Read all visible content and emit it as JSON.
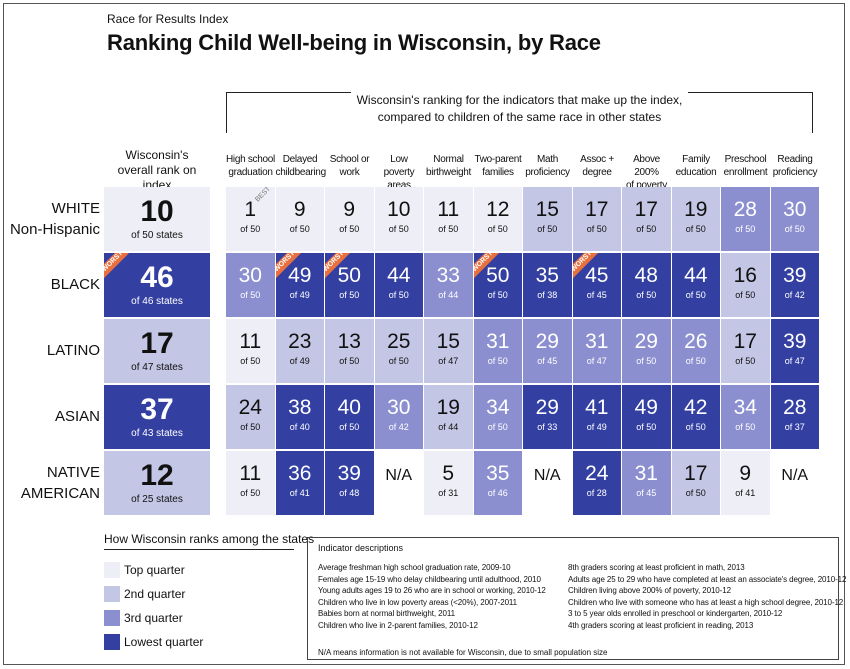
{
  "kicker": "Race for Results Index",
  "title": "Ranking Child Well-being in Wisconsin, by Race",
  "indicators_header": {
    "line1": "Wisconsin's ranking for the indicators that make up the index,",
    "line2": "compared to children of the same race in other states"
  },
  "overall_header": {
    "line1": "Wisconsin's",
    "line2": "overall rank on index"
  },
  "ribbons": {
    "worst": "WORST",
    "best": "BEST"
  },
  "chart_data": {
    "type": "table",
    "columns": [
      {
        "line1": "High school",
        "line2": "graduation"
      },
      {
        "line1": "Delayed",
        "line2": "childbearing"
      },
      {
        "line1": "School or",
        "line2": "work"
      },
      {
        "line1": "Low poverty",
        "line2": "areas"
      },
      {
        "line1": "Normal",
        "line2": "birthweight"
      },
      {
        "line1": "Two-parent",
        "line2": "families"
      },
      {
        "line1": "Math",
        "line2": "proficiency"
      },
      {
        "line1": "Assoc +",
        "line2": "degree"
      },
      {
        "line1": "Above 200%",
        "line2": "of poverty"
      },
      {
        "line1": "Family",
        "line2": "education"
      },
      {
        "line1": "Preschool",
        "line2": "enrollment"
      },
      {
        "line1": "Reading",
        "line2": "proficiency"
      }
    ],
    "rows": [
      {
        "label1": "WHITE",
        "label2": "Non-Hispanic",
        "overall": {
          "rank": "10",
          "of": "of 50 states",
          "quarter": 1
        },
        "cells": [
          {
            "rank": "1",
            "of": "of 50",
            "quarter": 1,
            "best": true
          },
          {
            "rank": "9",
            "of": "of 50",
            "quarter": 1
          },
          {
            "rank": "9",
            "of": "of 50",
            "quarter": 1
          },
          {
            "rank": "10",
            "of": "of 50",
            "quarter": 1
          },
          {
            "rank": "11",
            "of": "of 50",
            "quarter": 1
          },
          {
            "rank": "12",
            "of": "of 50",
            "quarter": 1
          },
          {
            "rank": "15",
            "of": "of 50",
            "quarter": 2
          },
          {
            "rank": "17",
            "of": "of 50",
            "quarter": 2
          },
          {
            "rank": "17",
            "of": "of 50",
            "quarter": 2
          },
          {
            "rank": "19",
            "of": "of 50",
            "quarter": 2
          },
          {
            "rank": "28",
            "of": "of 50",
            "quarter": 3
          },
          {
            "rank": "30",
            "of": "of 50",
            "quarter": 3
          }
        ]
      },
      {
        "label1": "BLACK",
        "label2": "",
        "overall": {
          "rank": "46",
          "of": "of 46 states",
          "quarter": 4,
          "worst": true
        },
        "cells": [
          {
            "rank": "30",
            "of": "of 50",
            "quarter": 3
          },
          {
            "rank": "49",
            "of": "of 49",
            "quarter": 4,
            "worst": true
          },
          {
            "rank": "50",
            "of": "of 50",
            "quarter": 4,
            "worst": true
          },
          {
            "rank": "44",
            "of": "of 50",
            "quarter": 4
          },
          {
            "rank": "33",
            "of": "of 44",
            "quarter": 3
          },
          {
            "rank": "50",
            "of": "of 50",
            "quarter": 4,
            "worst": true
          },
          {
            "rank": "35",
            "of": "of 38",
            "quarter": 4
          },
          {
            "rank": "45",
            "of": "of 45",
            "quarter": 4,
            "worst": true
          },
          {
            "rank": "48",
            "of": "of 50",
            "quarter": 4
          },
          {
            "rank": "44",
            "of": "of 50",
            "quarter": 4
          },
          {
            "rank": "16",
            "of": "of 50",
            "quarter": 2
          },
          {
            "rank": "39",
            "of": "of 42",
            "quarter": 4
          }
        ]
      },
      {
        "label1": "LATINO",
        "label2": "",
        "overall": {
          "rank": "17",
          "of": "of 47 states",
          "quarter": 2
        },
        "cells": [
          {
            "rank": "11",
            "of": "of 50",
            "quarter": 1
          },
          {
            "rank": "23",
            "of": "of 49",
            "quarter": 2
          },
          {
            "rank": "13",
            "of": "of 50",
            "quarter": 2
          },
          {
            "rank": "25",
            "of": "of 50",
            "quarter": 2
          },
          {
            "rank": "15",
            "of": "of 47",
            "quarter": 2
          },
          {
            "rank": "31",
            "of": "of 50",
            "quarter": 3
          },
          {
            "rank": "29",
            "of": "of 45",
            "quarter": 3
          },
          {
            "rank": "31",
            "of": "of 47",
            "quarter": 3
          },
          {
            "rank": "29",
            "of": "of 50",
            "quarter": 3
          },
          {
            "rank": "26",
            "of": "of 50",
            "quarter": 3
          },
          {
            "rank": "17",
            "of": "of 50",
            "quarter": 2
          },
          {
            "rank": "39",
            "of": "of 47",
            "quarter": 4
          }
        ]
      },
      {
        "label1": "ASIAN",
        "label2": "",
        "overall": {
          "rank": "37",
          "of": "of 43 states",
          "quarter": 4
        },
        "cells": [
          {
            "rank": "24",
            "of": "of 50",
            "quarter": 2
          },
          {
            "rank": "38",
            "of": "of 40",
            "quarter": 4
          },
          {
            "rank": "40",
            "of": "of 50",
            "quarter": 4
          },
          {
            "rank": "30",
            "of": "of 42",
            "quarter": 3
          },
          {
            "rank": "19",
            "of": "of 44",
            "quarter": 2
          },
          {
            "rank": "34",
            "of": "of 50",
            "quarter": 3
          },
          {
            "rank": "29",
            "of": "of 33",
            "quarter": 4
          },
          {
            "rank": "41",
            "of": "of 49",
            "quarter": 4
          },
          {
            "rank": "49",
            "of": "of 50",
            "quarter": 4
          },
          {
            "rank": "42",
            "of": "of 50",
            "quarter": 4
          },
          {
            "rank": "34",
            "of": "of 50",
            "quarter": 3
          },
          {
            "rank": "28",
            "of": "of 37",
            "quarter": 4
          }
        ]
      },
      {
        "label1": "NATIVE",
        "label2": "AMERICAN",
        "overall": {
          "rank": "12",
          "of": "of 25 states",
          "quarter": 2
        },
        "cells": [
          {
            "rank": "11",
            "of": "of 50",
            "quarter": 1
          },
          {
            "rank": "36",
            "of": "of 41",
            "quarter": 4
          },
          {
            "rank": "39",
            "of": "of 48",
            "quarter": 4
          },
          {
            "rank": "N/A",
            "of": "",
            "quarter": 0
          },
          {
            "rank": "5",
            "of": "of 31",
            "quarter": 1
          },
          {
            "rank": "35",
            "of": "of 46",
            "quarter": 3
          },
          {
            "rank": "N/A",
            "of": "",
            "quarter": 0
          },
          {
            "rank": "24",
            "of": "of 28",
            "quarter": 4
          },
          {
            "rank": "31",
            "of": "of 45",
            "quarter": 3
          },
          {
            "rank": "17",
            "of": "of 50",
            "quarter": 2
          },
          {
            "rank": "9",
            "of": "of 41",
            "quarter": 1
          },
          {
            "rank": "N/A",
            "of": "",
            "quarter": 0
          }
        ]
      }
    ],
    "quarter_colors": {
      "1": "#eeeef6",
      "2": "#c3c6e4",
      "3": "#8b8fd0",
      "4": "#3340a2",
      "0": "#ffffff"
    }
  },
  "legend": {
    "title": "How Wisconsin ranks among the states",
    "items": [
      {
        "label": "Top quarter",
        "color": "#eeeef6"
      },
      {
        "label": "2nd quarter",
        "color": "#c3c6e4"
      },
      {
        "label": "3rd quarter",
        "color": "#8b8fd0"
      },
      {
        "label": "Lowest quarter",
        "color": "#3340a2"
      }
    ]
  },
  "descriptions": {
    "title": "Indicator descriptions",
    "left": [
      "Average freshman high school graduation rate, 2009-10",
      "Females age 15-19 who delay childbearing until adulthood, 2010",
      "Young adults ages 19 to 26 who are in school or working, 2010-12",
      "Children who live in low poverty areas (<20%), 2007-2011",
      "Babies born at normal birthweight, 2011",
      "Children who live in 2-parent families, 2010-12"
    ],
    "right": [
      "8th graders scoring at least proficient in math, 2013",
      "Adults age 25 to 29 who have completed at least an associate's degree, 2010-12",
      "Children living above 200% of poverty, 2010-12",
      "Children who live with someone who has at least a high school degree, 2010-12",
      "3 to 5 year olds enrolled in preschool or kindergarten, 2010-12",
      "4th graders scoring at least proficient in reading, 2013"
    ],
    "na_note": "N/A means information is not available for Wisconsin, due to small population size"
  }
}
